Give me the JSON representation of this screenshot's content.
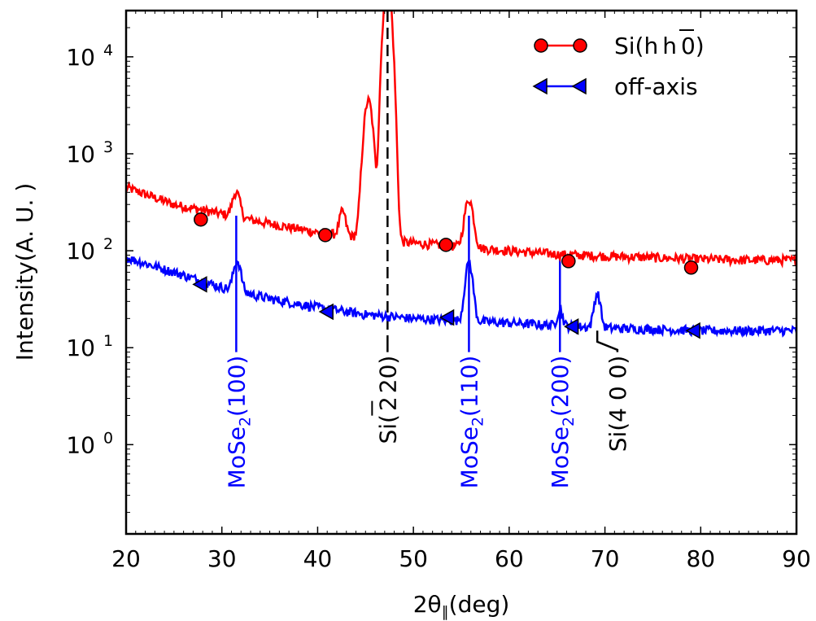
{
  "chart_data": {
    "type": "line",
    "xlabel": "2θ",
    "xlabel_sub": "∥",
    "xlabel_unit": "(deg)",
    "ylabel": "Intensity(A. U. )",
    "xlim": [
      20,
      90
    ],
    "ylim": [
      0.12,
      30000
    ],
    "yscale": "log",
    "x_ticks": [
      20,
      30,
      40,
      50,
      60,
      70,
      80,
      90
    ],
    "y_ticks": [
      {
        "value": 1,
        "base": "10",
        "exp": "0"
      },
      {
        "value": 10,
        "base": "10",
        "exp": "1"
      },
      {
        "value": 100,
        "base": "10",
        "exp": "2"
      },
      {
        "value": 1000,
        "base": "10",
        "exp": "3"
      },
      {
        "value": 10000,
        "base": "10",
        "exp": "4"
      }
    ],
    "grid": false,
    "legend_position": "top-right",
    "series": [
      {
        "name": "Si(h h 0)",
        "name_parts": [
          "Si(h",
          "h",
          "0)"
        ],
        "color": "#ff0000",
        "marker": "circle",
        "background": [
          [
            20,
            450
          ],
          [
            25,
            300
          ],
          [
            30,
            240
          ],
          [
            35,
            190
          ],
          [
            40,
            155
          ],
          [
            45,
            135
          ],
          [
            50,
            120
          ],
          [
            55,
            110
          ],
          [
            60,
            100
          ],
          [
            65,
            92
          ],
          [
            70,
            88
          ],
          [
            75,
            85
          ],
          [
            80,
            82
          ],
          [
            85,
            80
          ],
          [
            90,
            80
          ]
        ],
        "peaks": [
          {
            "x": 31.5,
            "height": 180,
            "width": 0.35
          },
          {
            "x": 42.6,
            "height": 110,
            "width": 0.3
          },
          {
            "x": 45.3,
            "height": 3400,
            "width": 0.4
          },
          {
            "x": 47.3,
            "height": 60000,
            "width": 0.35
          },
          {
            "x": 55.8,
            "height": 230,
            "width": 0.4
          }
        ],
        "markers": [
          [
            27.8,
            210
          ],
          [
            40.8,
            145
          ],
          [
            53.4,
            115
          ],
          [
            66.2,
            78
          ],
          [
            79.0,
            67
          ]
        ]
      },
      {
        "name": "off-axis",
        "color": "#0000ff",
        "marker": "triangle-left",
        "background": [
          [
            20,
            85
          ],
          [
            25,
            60
          ],
          [
            30,
            42
          ],
          [
            35,
            32
          ],
          [
            40,
            26
          ],
          [
            45,
            22
          ],
          [
            50,
            20
          ],
          [
            55,
            19
          ],
          [
            60,
            18
          ],
          [
            65,
            17
          ],
          [
            70,
            16
          ],
          [
            75,
            15.5
          ],
          [
            80,
            15
          ],
          [
            85,
            15
          ],
          [
            90,
            15
          ]
        ],
        "peaks": [
          {
            "x": 31.6,
            "height": 40,
            "width": 0.35
          },
          {
            "x": 55.8,
            "height": 55,
            "width": 0.35
          },
          {
            "x": 65.3,
            "height": 8,
            "width": 0.25
          },
          {
            "x": 69.2,
            "height": 20,
            "width": 0.3
          }
        ],
        "markers": [
          [
            27.8,
            45
          ],
          [
            41.0,
            23.5
          ],
          [
            53.6,
            20.5
          ],
          [
            66.6,
            16.5
          ],
          [
            79.3,
            15
          ]
        ]
      }
    ],
    "annotations": [
      {
        "label": "MoSe",
        "sub": "2",
        "hkl": "(100)",
        "x": 31.5,
        "color": "#0000ff",
        "label_x": 31.5,
        "label_anchor_value": 9
      },
      {
        "label": "Si",
        "hkl": "(2 2 0)",
        "hkl_parts": [
          "(",
          "2",
          "2",
          "0)"
        ],
        "x": 47.3,
        "color": "#000000",
        "label_x": 47.3,
        "label_anchor_value": 9
      },
      {
        "label": "MoSe",
        "sub": "2",
        "hkl": "(110)",
        "x": 55.8,
        "color": "#0000ff",
        "label_x": 55.8,
        "label_anchor_value": 9
      },
      {
        "label": "MoSe",
        "sub": "2",
        "hkl": "(200)",
        "x": 65.3,
        "color": "#0000ff",
        "label_x": 65.3,
        "label_anchor_value": 9
      },
      {
        "label": "Si",
        "hkl": "(4 0 0)",
        "x": 69.2,
        "color": "#000000",
        "label_x": 71.3,
        "label_anchor_value": 9
      }
    ]
  }
}
